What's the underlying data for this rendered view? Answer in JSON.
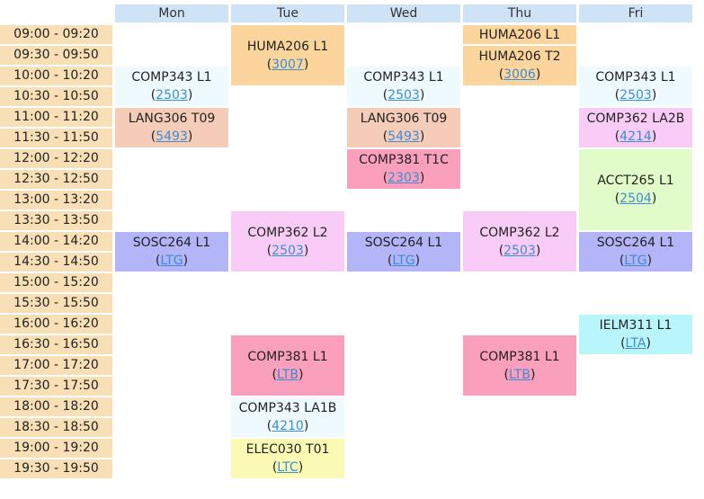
{
  "days": [
    "Mon",
    "Tue",
    "Wed",
    "Thu",
    "Fri"
  ],
  "times": [
    "09:00 - 09:20",
    "09:30 - 09:50",
    "10:00 - 10:20",
    "10:30 - 10:50",
    "11:00 - 11:20",
    "11:30 - 11:50",
    "12:00 - 12:20",
    "12:30 - 12:50",
    "13:00 - 13:20",
    "13:30 - 13:50",
    "14:00 - 14:20",
    "14:30 - 14:50",
    "15:00 - 15:20",
    "15:30 - 15:50",
    "16:00 - 16:20",
    "16:30 - 16:50",
    "17:00 - 17:20",
    "17:30 - 17:50",
    "18:00 - 18:20",
    "18:30 - 18:50",
    "19:00 - 19:20",
    "19:30 - 19:50"
  ],
  "colors": {
    "header": "#cfe3f7",
    "time": "#f9dfb5",
    "link": "#3b8ed4"
  },
  "classes": [
    {
      "day": 0,
      "start": 2,
      "span": 2,
      "course": "COMP343 L1",
      "room": "2503",
      "color": "#eefaff"
    },
    {
      "day": 0,
      "start": 4,
      "span": 2,
      "course": "LANG306 T09",
      "room": "5493",
      "color": "#f5ccb8"
    },
    {
      "day": 0,
      "start": 10,
      "span": 2,
      "course": "SOSC264 L1",
      "room": "LTG",
      "color": "#b4b4f8"
    },
    {
      "day": 1,
      "start": 0,
      "span": 3,
      "course": "HUMA206 L1",
      "room": "3007",
      "color": "#fbd59b"
    },
    {
      "day": 1,
      "start": 9,
      "span": 3,
      "course": "COMP362 L2",
      "room": "2503",
      "color": "#f9ccf8"
    },
    {
      "day": 1,
      "start": 15,
      "span": 3,
      "course": "COMP381 L1",
      "room": "LTB",
      "color": "#fa9fbc"
    },
    {
      "day": 1,
      "start": 18,
      "span": 2,
      "course": "COMP343 LA1B",
      "room": "4210",
      "color": "#eefaff"
    },
    {
      "day": 1,
      "start": 20,
      "span": 2,
      "course": "ELEC030 T01",
      "room": "LTC",
      "color": "#fbfab4"
    },
    {
      "day": 2,
      "start": 2,
      "span": 2,
      "course": "COMP343 L1",
      "room": "2503",
      "color": "#eefaff"
    },
    {
      "day": 2,
      "start": 4,
      "span": 2,
      "course": "LANG306 T09",
      "room": "5493",
      "color": "#f5ccb8"
    },
    {
      "day": 2,
      "start": 6,
      "span": 2,
      "course": "COMP381 T1C",
      "room": "2303",
      "color": "#fa9fbc"
    },
    {
      "day": 2,
      "start": 10,
      "span": 2,
      "course": "SOSC264 L1",
      "room": "LTG",
      "color": "#b4b4f8"
    },
    {
      "day": 3,
      "start": 0,
      "span": 1,
      "course": "HUMA206 L1",
      "room": "",
      "color": "#fbd59b"
    },
    {
      "day": 3,
      "start": 1,
      "span": 2,
      "course": "HUMA206 T2",
      "room": "3006",
      "color": "#fbd59b"
    },
    {
      "day": 3,
      "start": 9,
      "span": 3,
      "course": "COMP362 L2",
      "room": "2503",
      "color": "#f9ccf8"
    },
    {
      "day": 3,
      "start": 15,
      "span": 3,
      "course": "COMP381 L1",
      "room": "LTB",
      "color": "#fa9fbc"
    },
    {
      "day": 4,
      "start": 2,
      "span": 2,
      "course": "COMP343 L1",
      "room": "2503",
      "color": "#eefaff"
    },
    {
      "day": 4,
      "start": 4,
      "span": 2,
      "course": "COMP362 LA2B",
      "room": "4214",
      "color": "#f9ccf8"
    },
    {
      "day": 4,
      "start": 6,
      "span": 4,
      "course": "ACCT265 L1",
      "room": "2504",
      "color": "#e1fcc8"
    },
    {
      "day": 4,
      "start": 10,
      "span": 2,
      "course": "SOSC264 L1",
      "room": "LTG",
      "color": "#b4b4f8"
    },
    {
      "day": 4,
      "start": 14,
      "span": 2,
      "course": "IELM311 L1",
      "room": "LTA",
      "color": "#b9f6fb"
    }
  ]
}
